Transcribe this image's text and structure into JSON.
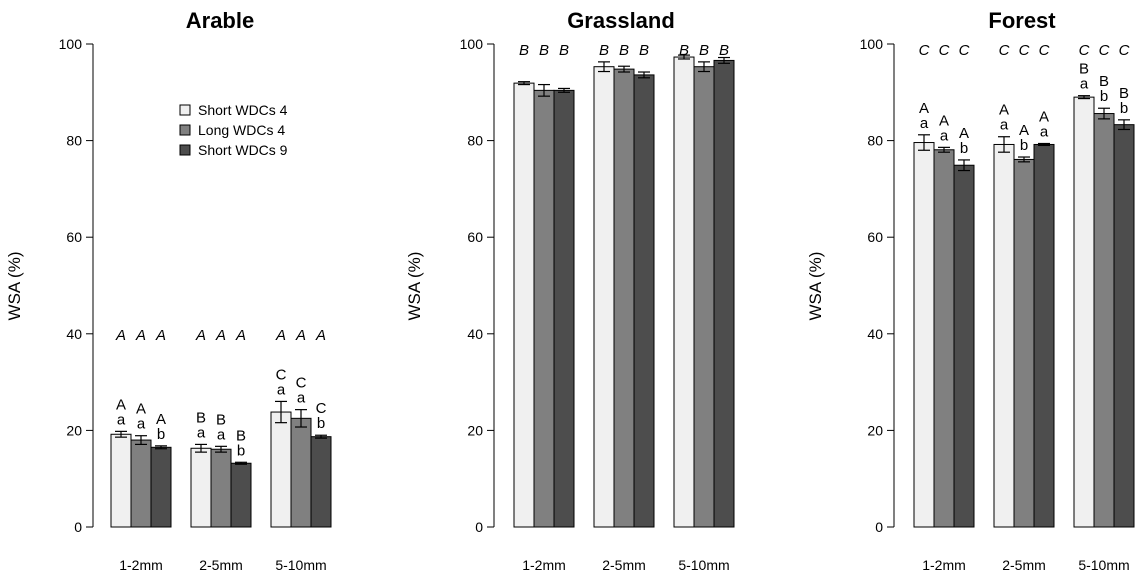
{
  "chart_data": [
    {
      "type": "bar",
      "title": "Arable",
      "xlabel": "",
      "ylabel": "WSA (%)",
      "ylim": [
        0,
        100
      ],
      "yticks": [
        0,
        20,
        40,
        60,
        80,
        100
      ],
      "categories": [
        "1-2mm",
        "2-5mm",
        "5-10mm"
      ],
      "legend": {
        "position": "top-center",
        "entries": [
          "Short WDCs 4",
          "Long WDCs 4",
          "Short WDCs 9"
        ]
      },
      "series": [
        {
          "name": "Short WDCs 4",
          "color": "#f0f0f0",
          "values": [
            19.2,
            16.3,
            23.8
          ],
          "errors": [
            0.6,
            0.8,
            2.2
          ],
          "lower_letters": [
            "a",
            "a",
            "a"
          ],
          "upper_letters": [
            "A",
            "B",
            "C"
          ]
        },
        {
          "name": "Long WDCs 4",
          "color": "#808080",
          "values": [
            18.0,
            16.1,
            22.5
          ],
          "errors": [
            0.9,
            0.6,
            1.8
          ],
          "lower_letters": [
            "a",
            "a",
            "a"
          ],
          "upper_letters": [
            "A",
            "B",
            "C"
          ]
        },
        {
          "name": "Short WDCs 9",
          "color": "#4d4d4d",
          "values": [
            16.5,
            13.2,
            18.7
          ],
          "errors": [
            0.3,
            0.2,
            0.3
          ],
          "lower_letters": [
            "b",
            "b",
            "b"
          ],
          "upper_letters": [
            "A",
            "B",
            "C"
          ]
        }
      ],
      "italic_letters": [
        [
          "A",
          "A",
          "A"
        ],
        [
          "A",
          "A",
          "A"
        ],
        [
          "A",
          "A",
          "A"
        ]
      ]
    },
    {
      "type": "bar",
      "title": "Grassland",
      "xlabel": "",
      "ylabel": "WSA (%)",
      "ylim": [
        0,
        100
      ],
      "yticks": [
        0,
        20,
        40,
        60,
        80,
        100
      ],
      "categories": [
        "1-2mm",
        "2-5mm",
        "5-10mm"
      ],
      "series": [
        {
          "name": "Short WDCs 4",
          "color": "#f0f0f0",
          "values": [
            91.9,
            95.3,
            97.3
          ],
          "errors": [
            0.3,
            1.0,
            0.4
          ],
          "lower_letters": [],
          "upper_letters": []
        },
        {
          "name": "Long WDCs 4",
          "color": "#808080",
          "values": [
            90.4,
            94.8,
            95.3
          ],
          "errors": [
            1.2,
            0.6,
            1.0
          ],
          "lower_letters": [],
          "upper_letters": []
        },
        {
          "name": "Short WDCs 9",
          "color": "#4d4d4d",
          "values": [
            90.4,
            93.6,
            96.6
          ],
          "errors": [
            0.4,
            0.6,
            0.6
          ],
          "lower_letters": [],
          "upper_letters": []
        }
      ],
      "italic_letters": [
        [
          "B",
          "B",
          "B"
        ],
        [
          "B",
          "B",
          "B"
        ],
        [
          "B",
          "B",
          "B"
        ]
      ]
    },
    {
      "type": "bar",
      "title": "Forest",
      "xlabel": "",
      "ylabel": "WSA (%)",
      "ylim": [
        0,
        100
      ],
      "yticks": [
        0,
        20,
        40,
        60,
        80,
        100
      ],
      "categories": [
        "1-2mm",
        "2-5mm",
        "5-10mm"
      ],
      "series": [
        {
          "name": "Short WDCs 4",
          "color": "#f0f0f0",
          "values": [
            79.6,
            79.2,
            89.0
          ],
          "errors": [
            1.6,
            1.6,
            0.3
          ],
          "lower_letters": [
            "a",
            "a",
            "a"
          ],
          "upper_letters": [
            "A",
            "A",
            "B"
          ]
        },
        {
          "name": "Long WDCs 4",
          "color": "#808080",
          "values": [
            78.1,
            76.1,
            85.6
          ],
          "errors": [
            0.5,
            0.5,
            1.1
          ],
          "lower_letters": [
            "a",
            "b",
            "b"
          ],
          "upper_letters": [
            "A",
            "A",
            "B"
          ]
        },
        {
          "name": "Short WDCs 9",
          "color": "#4d4d4d",
          "values": [
            74.9,
            79.2,
            83.3
          ],
          "errors": [
            1.1,
            0.2,
            1.0
          ],
          "lower_letters": [
            "b",
            "a",
            "b"
          ],
          "upper_letters": [
            "A",
            "A",
            "B"
          ]
        }
      ],
      "italic_letters": [
        [
          "C",
          "C",
          "C"
        ],
        [
          "C",
          "C",
          "C"
        ],
        [
          "C",
          "C",
          "C"
        ]
      ]
    }
  ]
}
